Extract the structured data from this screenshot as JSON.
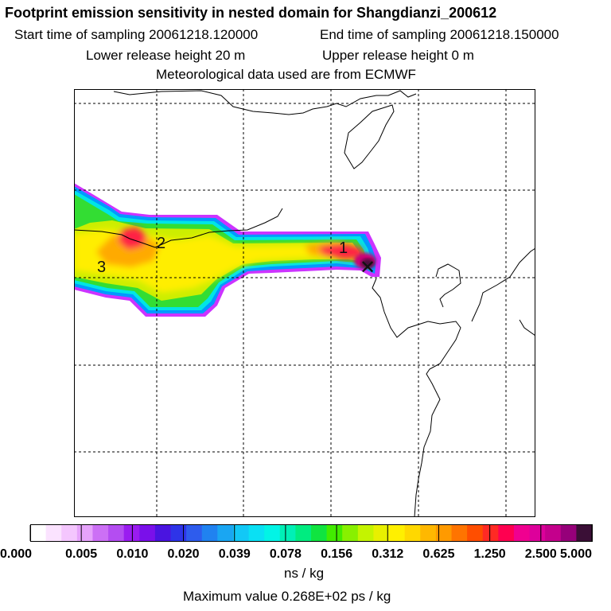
{
  "header": {
    "title": "Footprint emission sensitivity in nested domain for Shangdianzi_200612",
    "start_label": "Start time of sampling 20061218.120000",
    "end_label": "End time of sampling 20061218.150000",
    "lower_label": "Lower release height   20 m",
    "upper_label": "Upper release height    0 m",
    "met_label": "Meteorological data used are from ECMWF"
  },
  "map": {
    "point_labels": [
      "1",
      "2",
      "3"
    ],
    "receptor_marker": "✕",
    "plume_colors": {
      "outer": "#cc33ff",
      "blue": "#0099ff",
      "cyan": "#00e5e5",
      "green": "#33dd33",
      "yellowgreen": "#ccee00",
      "yellow": "#ffee00",
      "orange": "#ffaa00",
      "red": "#ff2244",
      "magenta": "#cc0077",
      "core": "#4b0f3d"
    }
  },
  "colorbar": {
    "colors": [
      "#ffffff",
      "#fbe3ff",
      "#f4c6fe",
      "#e6a3fb",
      "#cc70f5",
      "#b44df1",
      "#9a1cf0",
      "#7a10ea",
      "#4a14e0",
      "#2e34e8",
      "#2e5ced",
      "#2082f0",
      "#1aa6f2",
      "#12c8f6",
      "#0ae0f4",
      "#02f4e6",
      "#00f0b6",
      "#00ec80",
      "#10e440",
      "#42ec00",
      "#88f000",
      "#c4f400",
      "#e8f000",
      "#fff000",
      "#ffd800",
      "#ffb800",
      "#ff9a00",
      "#ff7400",
      "#ff4e00",
      "#ff2a24",
      "#ff0050",
      "#f00090",
      "#dd009b",
      "#c4008c",
      "#96007a",
      "#3a0f36"
    ],
    "tick_labels": [
      "0.000",
      "0.005",
      "0.010",
      "0.020",
      "0.039",
      "0.078",
      "0.156",
      "0.312",
      "0.625",
      "1.250",
      "2.500",
      "5.000"
    ],
    "units": "ns / kg",
    "max_value": "Maximum value  0.268E+02 ps / kg"
  }
}
